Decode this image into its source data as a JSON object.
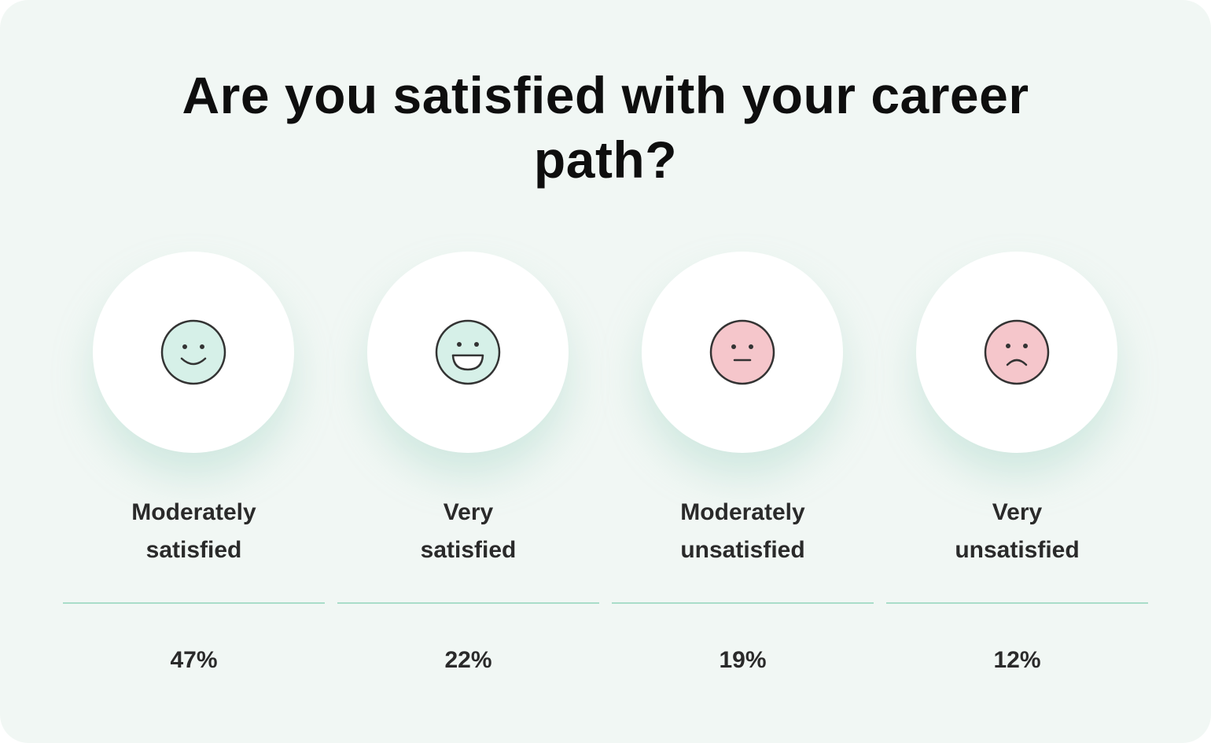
{
  "title": "Are you satisfied with your career path?",
  "colors": {
    "background": "#f1f7f4",
    "divider": "#a9ddc9",
    "positive_face": "#d6f0e8",
    "negative_face": "#f5c6cb",
    "face_stroke": "#333333"
  },
  "chart_data": {
    "type": "table",
    "title": "Are you satisfied with your career path?",
    "categories": [
      "Moderately satisfied",
      "Very satisfied",
      "Moderately unsatisfied",
      "Very unsatisfied"
    ],
    "values": [
      47,
      22,
      19,
      12
    ],
    "unit": "%"
  },
  "options": [
    {
      "label_line1": "Moderately",
      "label_line2": "satisfied",
      "value_text": "47%",
      "icon": "slight-smile-face-icon",
      "mood": "positive"
    },
    {
      "label_line1": "Very",
      "label_line2": "satisfied",
      "value_text": "22%",
      "icon": "grin-face-icon",
      "mood": "positive"
    },
    {
      "label_line1": "Moderately",
      "label_line2": "unsatisfied",
      "value_text": "19%",
      "icon": "neutral-face-icon",
      "mood": "negative"
    },
    {
      "label_line1": "Very",
      "label_line2": "unsatisfied",
      "value_text": "12%",
      "icon": "frown-face-icon",
      "mood": "negative"
    }
  ]
}
